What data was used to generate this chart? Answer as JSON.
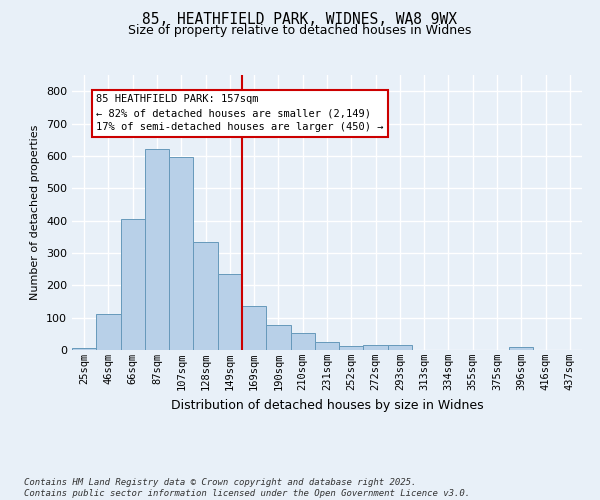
{
  "title_line1": "85, HEATHFIELD PARK, WIDNES, WA8 9WX",
  "title_line2": "Size of property relative to detached houses in Widnes",
  "xlabel": "Distribution of detached houses by size in Widnes",
  "ylabel": "Number of detached properties",
  "categories": [
    "25sqm",
    "46sqm",
    "66sqm",
    "87sqm",
    "107sqm",
    "128sqm",
    "149sqm",
    "169sqm",
    "190sqm",
    "210sqm",
    "231sqm",
    "252sqm",
    "272sqm",
    "293sqm",
    "313sqm",
    "334sqm",
    "355sqm",
    "375sqm",
    "396sqm",
    "416sqm",
    "437sqm"
  ],
  "values": [
    5,
    110,
    405,
    620,
    598,
    335,
    236,
    136,
    78,
    54,
    26,
    12,
    17,
    17,
    0,
    0,
    0,
    0,
    8,
    0,
    0
  ],
  "bar_color": "#b8d0e8",
  "bar_edge_color": "#6699bb",
  "background_color": "#e8f0f8",
  "grid_color": "#ffffff",
  "ylim": [
    0,
    850
  ],
  "yticks": [
    0,
    100,
    200,
    300,
    400,
    500,
    600,
    700,
    800
  ],
  "vline_x_index": 6.5,
  "annotation_title": "85 HEATHFIELD PARK: 157sqm",
  "annotation_line1": "← 82% of detached houses are smaller (2,149)",
  "annotation_line2": "17% of semi-detached houses are larger (450) →",
  "vline_color": "#cc0000",
  "annotation_box_color": "#cc0000",
  "footer_line1": "Contains HM Land Registry data © Crown copyright and database right 2025.",
  "footer_line2": "Contains public sector information licensed under the Open Government Licence v3.0."
}
